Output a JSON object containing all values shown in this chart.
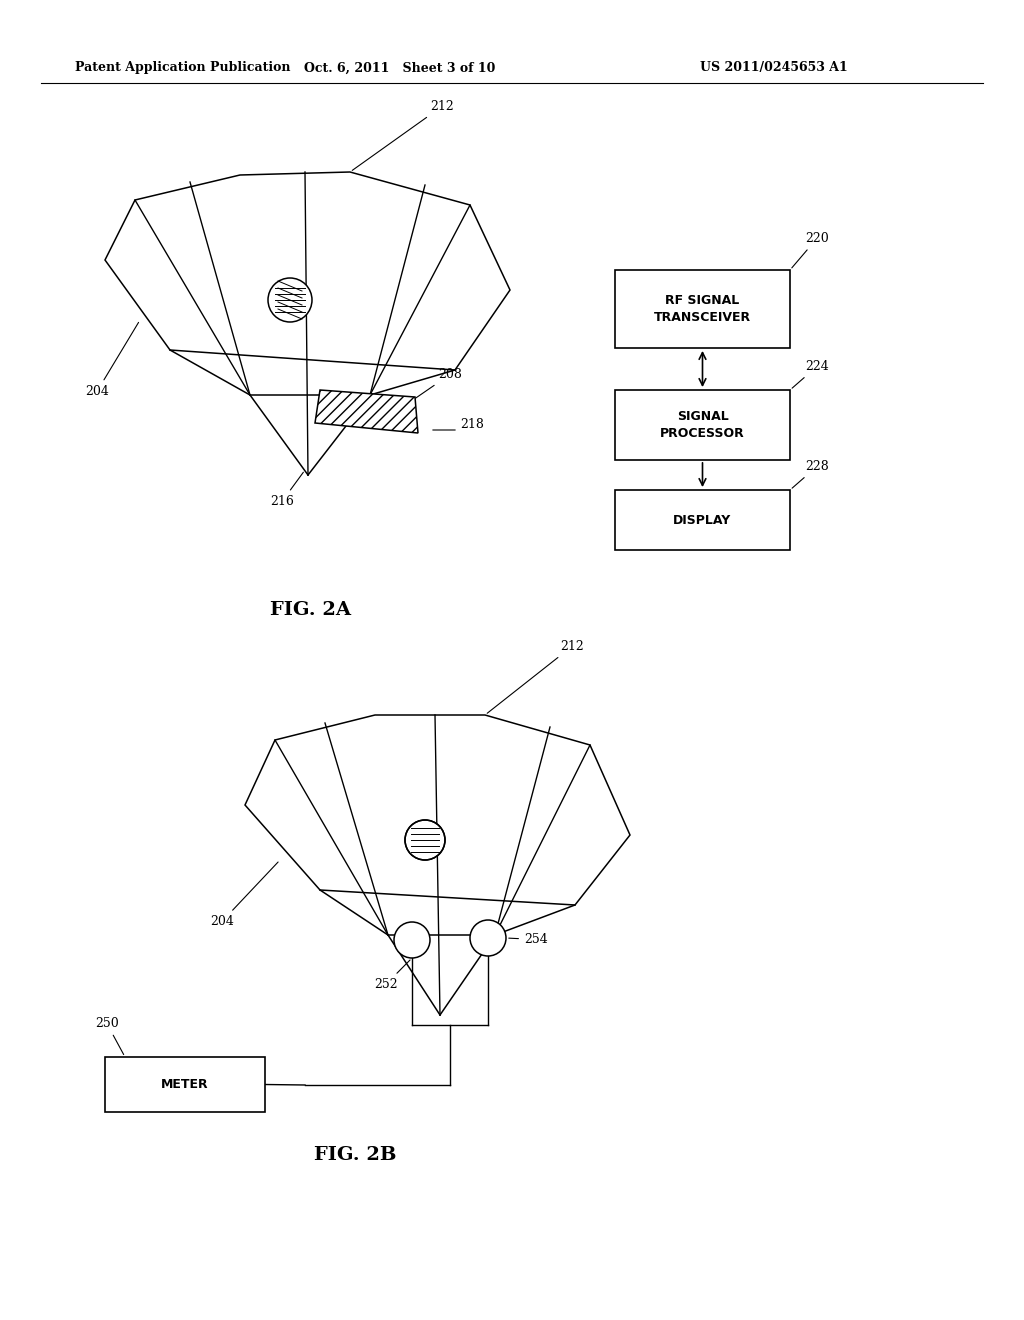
{
  "background_color": "#ffffff",
  "header_left": "Patent Application Publication",
  "header_center": "Oct. 6, 2011   Sheet 3 of 10",
  "header_right": "US 2011/0245653 A1",
  "fig2a_label": "FIG. 2A",
  "fig2b_label": "FIG. 2B",
  "line_color": "#000000",
  "text_color": "#000000",
  "lw": 1.1
}
